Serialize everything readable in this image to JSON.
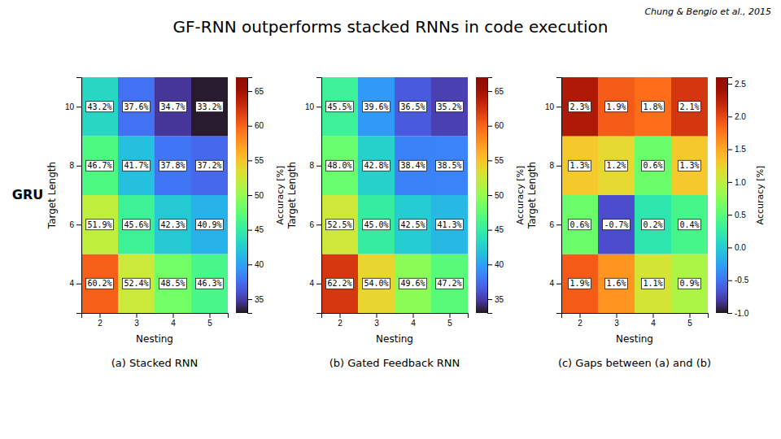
{
  "title": "GF-RNN outperforms stacked RNNs in code execution",
  "annotations": [
    "Chung & Bengio et al., 2015",
    "GRU"
  ],
  "chart_data": [
    {
      "type": "heatmap",
      "subtitle": "(a) Stacked RNN",
      "x_label": "Nesting",
      "y_label": "Target Length",
      "x": [
        2,
        3,
        4,
        5
      ],
      "y": [
        4,
        6,
        8,
        10
      ],
      "values": [
        [
          60.2,
          52.4,
          48.5,
          46.3
        ],
        [
          51.9,
          45.6,
          42.3,
          40.9
        ],
        [
          46.7,
          41.7,
          37.8,
          37.2
        ],
        [
          43.2,
          37.6,
          34.7,
          33.2
        ]
      ],
      "value_labels": [
        [
          "60.2%",
          "52.4%",
          "48.5%",
          "46.3%"
        ],
        [
          "51.9%",
          "45.6%",
          "42.3%",
          "40.9%"
        ],
        [
          "46.7%",
          "41.7%",
          "37.8%",
          "37.2%"
        ],
        [
          "43.2%",
          "37.6%",
          "34.7%",
          "33.2%"
        ]
      ],
      "data_labels": true,
      "xlim": [
        1.5,
        5.5
      ],
      "ylim": [
        3,
        11
      ],
      "xticks": [
        2,
        3,
        4,
        5
      ],
      "yticks": [
        4,
        6,
        8,
        10
      ],
      "colorbar": {
        "label": "Accuracy [%]",
        "range": [
          33,
          67
        ],
        "ticks": [
          35,
          40,
          45,
          50,
          55,
          60,
          65
        ]
      }
    },
    {
      "type": "heatmap",
      "subtitle": "(b) Gated Feedback RNN",
      "x_label": "Nesting",
      "y_label": "Target Length",
      "x": [
        2,
        3,
        4,
        5
      ],
      "y": [
        4,
        6,
        8,
        10
      ],
      "values": [
        [
          62.2,
          54.0,
          49.6,
          47.2
        ],
        [
          52.5,
          45.0,
          42.5,
          41.3
        ],
        [
          48.0,
          42.8,
          38.4,
          38.5
        ],
        [
          45.5,
          39.6,
          36.5,
          35.2
        ]
      ],
      "value_labels": [
        [
          "62.2%",
          "54.0%",
          "49.6%",
          "47.2%"
        ],
        [
          "52.5%",
          "45.0%",
          "42.5%",
          "41.3%"
        ],
        [
          "48.0%",
          "42.8%",
          "38.4%",
          "38.5%"
        ],
        [
          "45.5%",
          "39.6%",
          "36.5%",
          "35.2%"
        ]
      ],
      "data_labels": true,
      "xlim": [
        1.5,
        5.5
      ],
      "ylim": [
        3,
        11
      ],
      "xticks": [
        2,
        3,
        4,
        5
      ],
      "yticks": [
        4,
        6,
        8,
        10
      ],
      "colorbar": {
        "label": "Accuracy [%]",
        "range": [
          33,
          67
        ],
        "ticks": [
          35,
          40,
          45,
          50,
          55,
          60,
          65
        ]
      }
    },
    {
      "type": "heatmap",
      "subtitle": "(c) Gaps between (a) and (b)",
      "x_label": "Nesting",
      "y_label": "Target Length",
      "x": [
        2,
        3,
        4,
        5
      ],
      "y": [
        4,
        6,
        8,
        10
      ],
      "values": [
        [
          1.9,
          1.6,
          1.1,
          0.9
        ],
        [
          0.6,
          -0.7,
          0.2,
          0.4
        ],
        [
          1.3,
          1.2,
          0.6,
          1.3
        ],
        [
          2.3,
          1.9,
          1.8,
          2.1
        ]
      ],
      "value_labels": [
        [
          "1.9%",
          "1.6%",
          "1.1%",
          "0.9%"
        ],
        [
          "0.6%",
          "-0.7%",
          "0.2%",
          "0.4%"
        ],
        [
          "1.3%",
          "1.2%",
          "0.6%",
          "1.3%"
        ],
        [
          "2.3%",
          "1.9%",
          "1.8%",
          "2.1%"
        ]
      ],
      "data_labels": true,
      "xlim": [
        1.5,
        5.5
      ],
      "ylim": [
        3,
        11
      ],
      "xticks": [
        2,
        3,
        4,
        5
      ],
      "yticks": [
        4,
        6,
        8,
        10
      ],
      "colorbar": {
        "label": "Accuracy [%]",
        "range": [
          -1,
          2.6
        ],
        "ticks": [
          {
            "value": -1,
            "label": "-1.0"
          },
          -0.5,
          {
            "value": 0,
            "label": "0.0"
          },
          0.5,
          {
            "value": 1,
            "label": "1.0"
          },
          1.5,
          {
            "value": 2,
            "label": "2.0"
          },
          2.5
        ]
      }
    }
  ]
}
